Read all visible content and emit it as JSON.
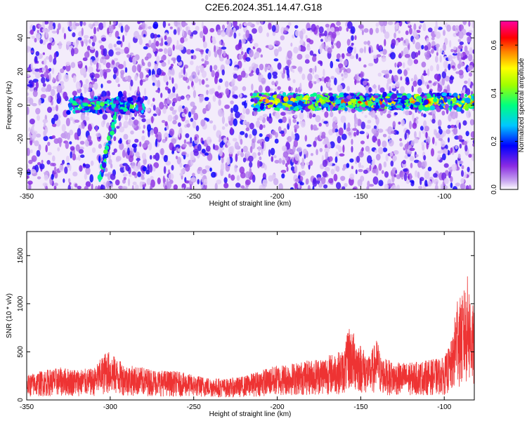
{
  "title": "C2E6.2024.351.14.47.G18",
  "chart_data": [
    {
      "type": "heatmap",
      "xlabel": "Height of straight line (km)",
      "ylabel": "Frequency (Hz)",
      "xlim": [
        -350,
        -82
      ],
      "ylim": [
        -50,
        50
      ],
      "x_ticks": [
        -350,
        -300,
        -250,
        -200,
        -150,
        -100
      ],
      "y_ticks": [
        -40,
        -20,
        0,
        20,
        40
      ],
      "grid": false,
      "colorbar": {
        "label": "Normalized spectral amplitude",
        "range": [
          0,
          0.7
        ],
        "ticks": [
          0.0,
          0.2,
          0.4,
          0.6
        ],
        "colors": [
          "#ffffff",
          "#8a2be2",
          "#0000ff",
          "#00ffff",
          "#00ff00",
          "#ffff00",
          "#ff0000",
          "#ff00ff"
        ]
      },
      "features": [
        {
          "name": "",
          "x_range": [
            -325,
            -280
          ],
          "freq": 0,
          "amplitude": 0.35
        },
        {
          "name": "",
          "x_range": [
            -215,
            -82
          ],
          "freq": 2,
          "amplitude": 0.55
        },
        {
          "name": "",
          "x_start": -306,
          "x_end": -294,
          "freq_start": -44,
          "freq_end": 8,
          "amplitude": 0.3
        }
      ]
    },
    {
      "type": "line",
      "xlabel": "Height of straight line (km)",
      "ylabel": "SNR (10 * v/v)",
      "xlim": [
        -350,
        -82
      ],
      "ylim": [
        0,
        1750
      ],
      "x_ticks": [
        -350,
        -300,
        -250,
        -200,
        -150,
        -100
      ],
      "y_ticks": [
        0,
        500,
        1000,
        1500
      ],
      "grid": false,
      "color": "#ee3333",
      "series": [
        {
          "name": "",
          "x": [
            -350,
            -340,
            -330,
            -320,
            -310,
            -302,
            -300,
            -295,
            -290,
            -280,
            -270,
            -260,
            -250,
            -240,
            -230,
            -220,
            -210,
            -200,
            -190,
            -180,
            -170,
            -160,
            -157,
            -150,
            -145,
            -140,
            -138,
            -130,
            -120,
            -110,
            -100,
            -95,
            -92,
            -90,
            -86,
            -82
          ],
          "values": [
            200,
            240,
            260,
            250,
            250,
            400,
            380,
            320,
            280,
            260,
            240,
            230,
            200,
            180,
            170,
            190,
            240,
            280,
            300,
            320,
            360,
            400,
            600,
            450,
            350,
            500,
            350,
            300,
            300,
            320,
            340,
            500,
            900,
            800,
            1000,
            700
          ]
        }
      ]
    }
  ]
}
